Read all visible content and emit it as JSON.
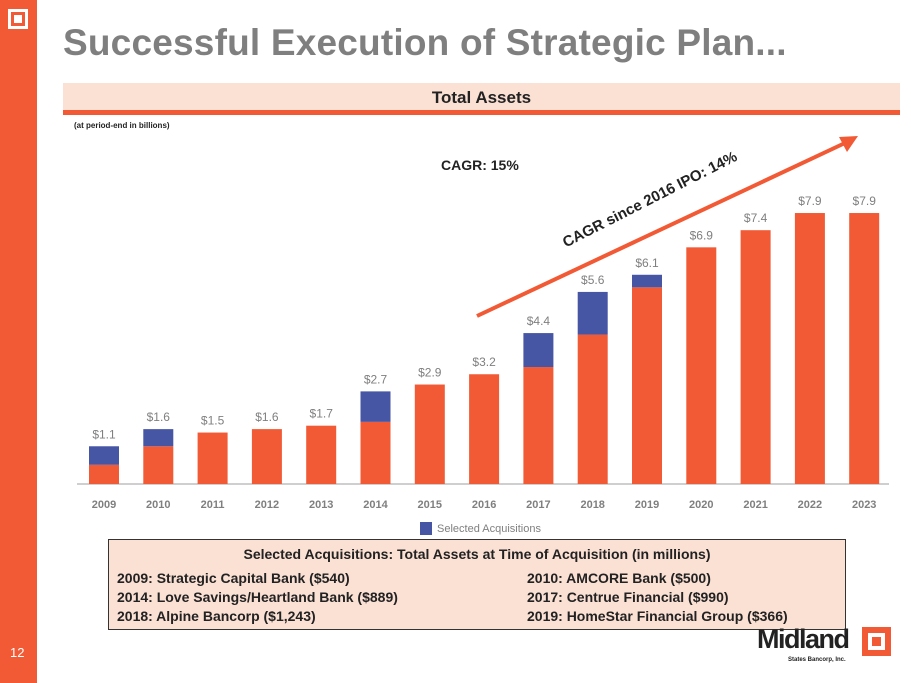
{
  "slide": {
    "title": "Successful Execution of Strategic Plan...",
    "page_number": "12",
    "band_title": "Total Assets",
    "note": "(at period-end in billions)",
    "cagr": "CAGR: 15%",
    "cagr_since_ipo": "CAGR since 2016 IPO: 14%",
    "brand_color": "#f15a35",
    "logo": {
      "name": "Midland",
      "sub": "States Bancorp, Inc."
    }
  },
  "chart_data": {
    "type": "bar",
    "stacked": true,
    "categories": [
      "2009",
      "2010",
      "2011",
      "2012",
      "2013",
      "2014",
      "2015",
      "2016",
      "2017",
      "2018",
      "2019",
      "2020",
      "2021",
      "2022",
      "2023"
    ],
    "totals": [
      1.1,
      1.6,
      1.5,
      1.6,
      1.7,
      2.7,
      2.9,
      3.2,
      4.4,
      5.6,
      6.1,
      6.9,
      7.4,
      7.9,
      7.9
    ],
    "data_labels": [
      "$1.1",
      "$1.6",
      "$1.5",
      "$1.6",
      "$1.7",
      "$2.7",
      "$2.9",
      "$3.2",
      "$4.4",
      "$5.6",
      "$6.1",
      "$6.9",
      "$7.4",
      "$7.9",
      "$7.9"
    ],
    "series": [
      {
        "values": [
          0.56,
          1.1,
          1.5,
          1.6,
          1.7,
          1.811,
          2.9,
          3.2,
          3.41,
          4.357,
          5.734,
          6.9,
          7.4,
          7.9,
          7.9
        ],
        "color": "#f15a35"
      },
      {
        "name": "Selected Acquisitions",
        "values": [
          0.54,
          0.5,
          0,
          0,
          0,
          0.889,
          0,
          0,
          0.99,
          1.243,
          0.366,
          0,
          0,
          0,
          0
        ],
        "color": "#4656a5"
      }
    ],
    "ylim": [
      0,
      8
    ],
    "grid": false,
    "legend": "bottom",
    "annotation_arrow": {
      "from": "2016",
      "to": "2023",
      "color": "#f15a35"
    }
  },
  "acquisitions_box": {
    "title": "Selected Acquisitions: Total Assets at Time of Acquisition (in millions)",
    "items": [
      "2009: Strategic Capital Bank ($540)",
      "2010: AMCORE Bank ($500)",
      "2014: Love Savings/Heartland Bank ($889)",
      "2017: Centrue Financial ($990)",
      "2018: Alpine Bancorp ($1,243)",
      "2019: HomeStar Financial Group ($366)"
    ]
  }
}
